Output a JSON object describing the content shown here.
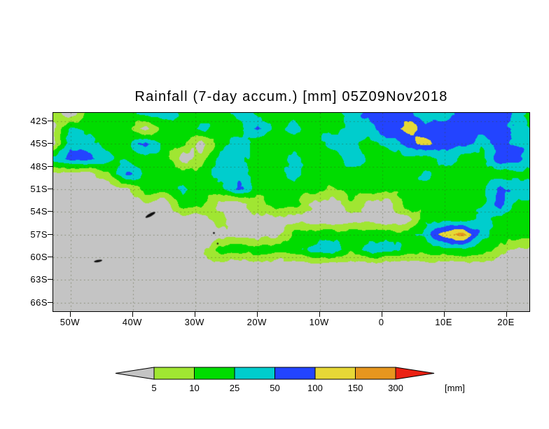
{
  "chart_data": {
    "type": "heatmap",
    "title": "Rainfall (7-day accum.) [mm] 05Z09Nov2018",
    "unit_label": "[mm]",
    "lat_ticks": [
      {
        "label": "42S",
        "deg": 42
      },
      {
        "label": "45S",
        "deg": 45
      },
      {
        "label": "48S",
        "deg": 48
      },
      {
        "label": "51S",
        "deg": 51
      },
      {
        "label": "54S",
        "deg": 54
      },
      {
        "label": "57S",
        "deg": 57
      },
      {
        "label": "60S",
        "deg": 60
      },
      {
        "label": "63S",
        "deg": 63
      },
      {
        "label": "66S",
        "deg": 66
      }
    ],
    "lon_ticks": [
      {
        "label": "50W",
        "deg": -50
      },
      {
        "label": "40W",
        "deg": -40
      },
      {
        "label": "30W",
        "deg": -30
      },
      {
        "label": "20W",
        "deg": -20
      },
      {
        "label": "10W",
        "deg": -10
      },
      {
        "label": "0",
        "deg": 0
      },
      {
        "label": "10E",
        "deg": 10
      },
      {
        "label": "20E",
        "deg": 20
      }
    ],
    "lat_range_s": [
      40.9,
      67.15
    ],
    "lon_range": [
      -52.8,
      23.65
    ],
    "levels": [
      5,
      10,
      25,
      50,
      100,
      150,
      300
    ],
    "colorbar_labels": [
      "5",
      "10",
      "25",
      "50",
      "100",
      "150",
      "300"
    ],
    "colors": [
      "#c4c4c4",
      "#a0e632",
      "#00dc00",
      "#00cdcd",
      "#2344ff",
      "#e6d836",
      "#e6961e",
      "#eb2113"
    ],
    "graticule": {
      "lat_lines": [
        42,
        45,
        48,
        51,
        54,
        57,
        60,
        63,
        66
      ],
      "lon_lines": [
        -50,
        -40,
        -30,
        -20,
        -10,
        0,
        10,
        20
      ]
    },
    "grid": {
      "lon0": -53,
      "dlon": 3,
      "lat0": 41,
      "dlat": 2,
      "rows": [
        "102223322232222234443344432",
        "032220223224232233454444432",
        "033224220232222332345443433",
        "344322201332232232222322442",
        "000142222332232222223222223",
        "000002232242222122222222433",
        "000000022001220010022222422",
        "000000000100000000002223222",
        "000000000000022222223563222",
        "000000000222223323322222100",
        "000000000000000000000000000",
        "000000000000000000000000000",
        "000000000000000000000000000",
        "000000000000000000000000000"
      ]
    },
    "islands": [
      {
        "lon": -37.2,
        "lat": -54.4,
        "rx": 8,
        "ry": 2.1,
        "angle_deg": -28
      },
      {
        "lon": -45.6,
        "lat": -60.5,
        "rx": 6,
        "ry": 1.6,
        "angle_deg": -10
      },
      {
        "lon": -27.0,
        "lat": -56.8,
        "rx": 1.3,
        "ry": 1.3,
        "angle_deg": 0
      },
      {
        "lon": -26.4,
        "lat": -58.2,
        "rx": 1.2,
        "ry": 1.2,
        "angle_deg": 0
      }
    ]
  }
}
